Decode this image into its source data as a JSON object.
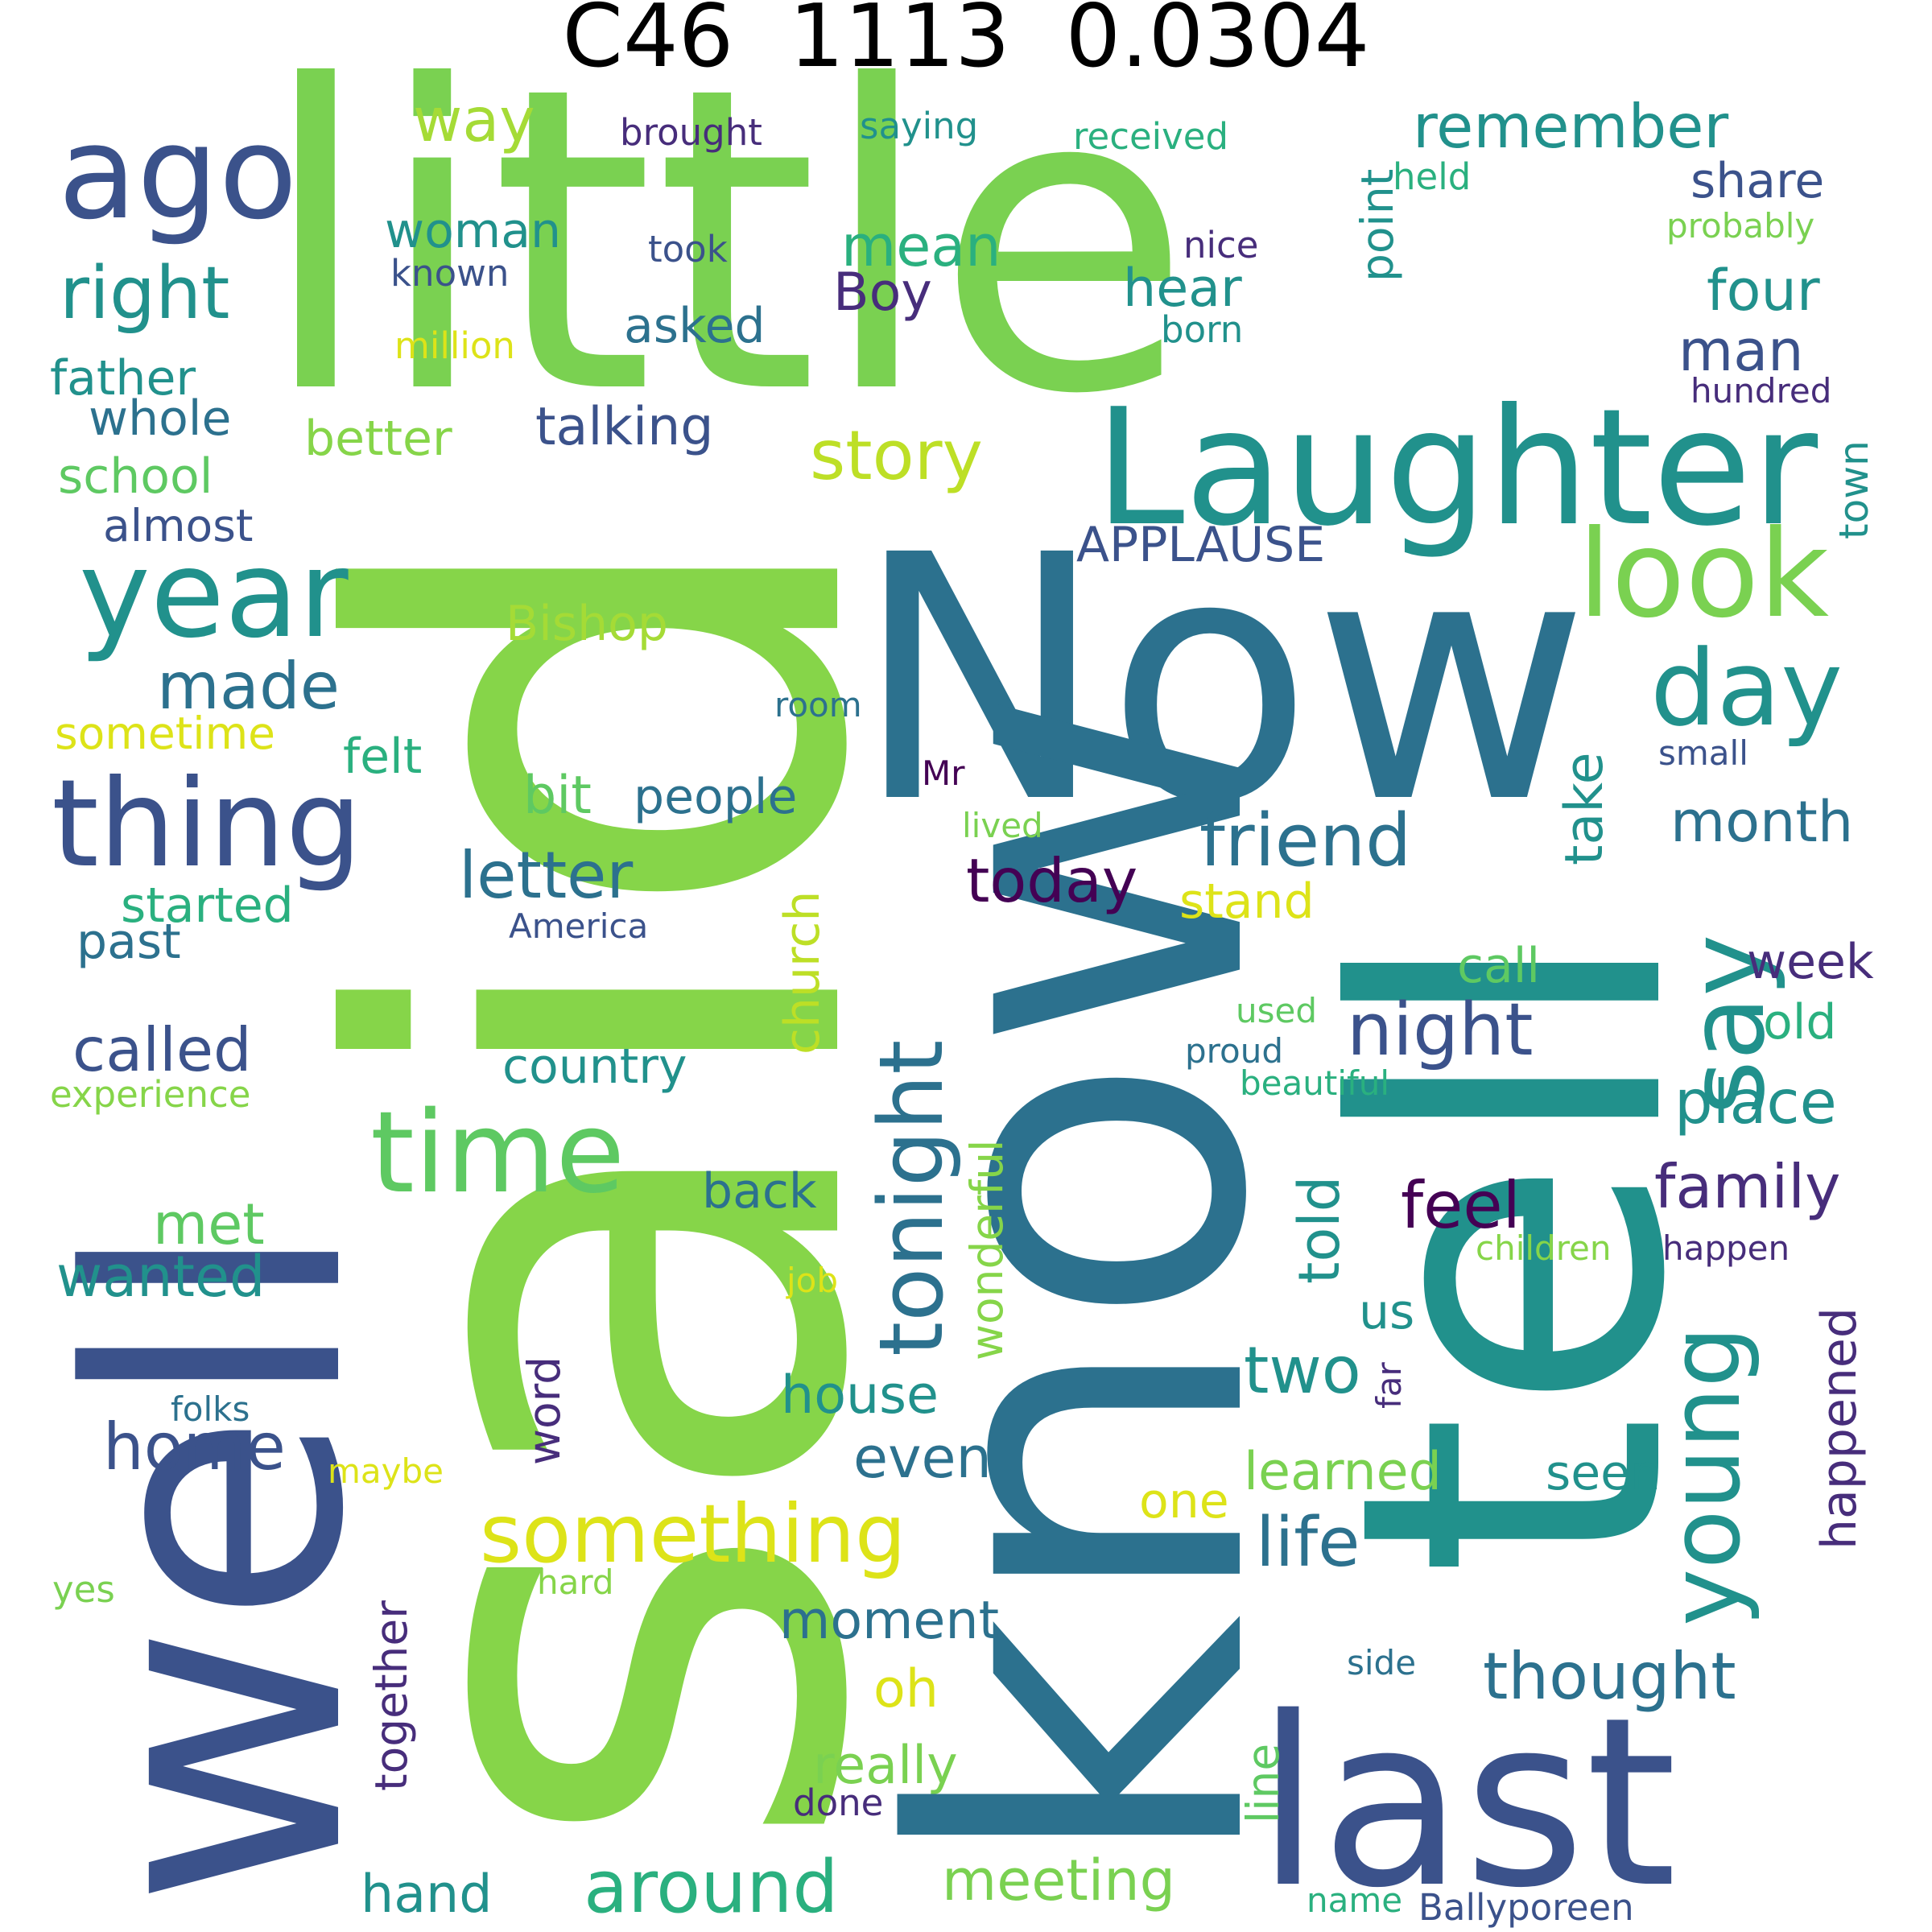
{
  "title": "C46  1113  0.0304",
  "palette": {
    "green": "#7ad151",
    "lightgreen": "#86d549",
    "teal": "#21918c",
    "blue": "#2c718e",
    "darkblue": "#3b528b",
    "indigo": "#472d7b",
    "purple": "#440154",
    "yellow": "#dde318",
    "seagreen": "#2ab07f",
    "lime": "#a5db36"
  },
  "words": [
    {
      "text": "little",
      "color": "#7ad151"
    },
    {
      "text": "said",
      "color": "#86d549"
    },
    {
      "text": "Now",
      "color": "#2c718e"
    },
    {
      "text": "know",
      "color": "#2c718e"
    },
    {
      "text": "tell",
      "color": "#21918c"
    },
    {
      "text": "well",
      "color": "#3b528b"
    },
    {
      "text": "last",
      "color": "#3b528b"
    },
    {
      "text": "Laughter",
      "color": "#21918c"
    },
    {
      "text": "ago",
      "color": "#3b528b"
    },
    {
      "text": "year",
      "color": "#21918c"
    },
    {
      "text": "thing",
      "color": "#3b528b"
    },
    {
      "text": "time",
      "color": "#5ec962"
    },
    {
      "text": "look",
      "color": "#7ad151"
    },
    {
      "text": "day",
      "color": "#21918c"
    },
    {
      "text": "say",
      "color": "#21918c"
    },
    {
      "text": "young",
      "color": "#21918c"
    },
    {
      "text": "tonight",
      "color": "#2c718e"
    },
    {
      "text": "right",
      "color": "#21918c"
    },
    {
      "text": "something",
      "color": "#dde318"
    },
    {
      "text": "story",
      "color": "#bddf26"
    },
    {
      "text": "remember",
      "color": "#21918c"
    },
    {
      "text": "made",
      "color": "#2c718e"
    },
    {
      "text": "friend",
      "color": "#2c718e"
    },
    {
      "text": "night",
      "color": "#3b528b"
    },
    {
      "text": "around",
      "color": "#2ab07f"
    },
    {
      "text": "letter",
      "color": "#2c718e"
    },
    {
      "text": "thought",
      "color": "#2c718e"
    },
    {
      "text": "called",
      "color": "#3b528b"
    },
    {
      "text": "today",
      "color": "#440154"
    },
    {
      "text": "month",
      "color": "#2c718e"
    },
    {
      "text": "place",
      "color": "#21918c"
    },
    {
      "text": "family",
      "color": "#472d7b"
    },
    {
      "text": "feel",
      "color": "#440154"
    },
    {
      "text": "life",
      "color": "#2c718e"
    },
    {
      "text": "wanted",
      "color": "#21918c"
    },
    {
      "text": "home",
      "color": "#3b528b"
    },
    {
      "text": "two",
      "color": "#21918c"
    },
    {
      "text": "even",
      "color": "#2c718e"
    },
    {
      "text": "meeting",
      "color": "#7ad151"
    },
    {
      "text": "moment",
      "color": "#2c718e"
    },
    {
      "text": "really",
      "color": "#7ad151"
    },
    {
      "text": "hand",
      "color": "#21918c"
    },
    {
      "text": "way",
      "color": "#a5db36"
    },
    {
      "text": "woman",
      "color": "#21918c"
    },
    {
      "text": "mean",
      "color": "#2ab07f"
    },
    {
      "text": "Boy",
      "color": "#472d7b"
    },
    {
      "text": "asked",
      "color": "#2c718e"
    },
    {
      "text": "hear",
      "color": "#21918c"
    },
    {
      "text": "share",
      "color": "#3b528b"
    },
    {
      "text": "four",
      "color": "#21918c"
    },
    {
      "text": "man",
      "color": "#3b528b"
    },
    {
      "text": "father",
      "color": "#21918c"
    },
    {
      "text": "whole",
      "color": "#2c718e"
    },
    {
      "text": "better",
      "color": "#86d549"
    },
    {
      "text": "talking",
      "color": "#3b528b"
    },
    {
      "text": "school",
      "color": "#5ec962"
    },
    {
      "text": "almost",
      "color": "#3b528b"
    },
    {
      "text": "APPLAUSE",
      "color": "#3b528b"
    },
    {
      "text": "Bishop",
      "color": "#a5db36"
    },
    {
      "text": "sometime",
      "color": "#dde318"
    },
    {
      "text": "felt",
      "color": "#2ab07f"
    },
    {
      "text": "bit",
      "color": "#5ec962"
    },
    {
      "text": "people",
      "color": "#2c718e"
    },
    {
      "text": "started",
      "color": "#2ab07f"
    },
    {
      "text": "past",
      "color": "#2c718e"
    },
    {
      "text": "church",
      "color": "#bddf26"
    },
    {
      "text": "country",
      "color": "#21918c"
    },
    {
      "text": "experience",
      "color": "#86d549"
    },
    {
      "text": "met",
      "color": "#5ec962"
    },
    {
      "text": "back",
      "color": "#2c718e"
    },
    {
      "text": "wonderful",
      "color": "#86d549"
    },
    {
      "text": "told",
      "color": "#21918c"
    },
    {
      "text": "take",
      "color": "#21918c"
    },
    {
      "text": "stand",
      "color": "#dde318"
    },
    {
      "text": "call",
      "color": "#5ec962"
    },
    {
      "text": "week",
      "color": "#472d7b"
    },
    {
      "text": "old",
      "color": "#2ab07f"
    },
    {
      "text": "point",
      "color": "#21918c"
    },
    {
      "text": "town",
      "color": "#21918c"
    },
    {
      "text": "house",
      "color": "#21918c"
    },
    {
      "text": "word",
      "color": "#472d7b"
    },
    {
      "text": "us",
      "color": "#21918c"
    },
    {
      "text": "learned",
      "color": "#7ad151"
    },
    {
      "text": "seen",
      "color": "#21918c"
    },
    {
      "text": "one",
      "color": "#dde318"
    },
    {
      "text": "happened",
      "color": "#472d7b"
    },
    {
      "text": "together",
      "color": "#472d7b"
    },
    {
      "text": "oh",
      "color": "#dde318"
    },
    {
      "text": "line",
      "color": "#5ec962"
    },
    {
      "text": "brought",
      "color": "#472d7b"
    },
    {
      "text": "saying",
      "color": "#21918c"
    },
    {
      "text": "received",
      "color": "#2ab07f"
    },
    {
      "text": "held",
      "color": "#2ab07f"
    },
    {
      "text": "probably",
      "color": "#7ad151"
    },
    {
      "text": "took",
      "color": "#3b528b"
    },
    {
      "text": "nice",
      "color": "#472d7b"
    },
    {
      "text": "known",
      "color": "#3b528b"
    },
    {
      "text": "million",
      "color": "#dde318"
    },
    {
      "text": "born",
      "color": "#21918c"
    },
    {
      "text": "hundred",
      "color": "#472d7b"
    },
    {
      "text": "room",
      "color": "#2c718e"
    },
    {
      "text": "Mr",
      "color": "#440154"
    },
    {
      "text": "small",
      "color": "#3b528b"
    },
    {
      "text": "lived",
      "color": "#7ad151"
    },
    {
      "text": "America",
      "color": "#3b528b"
    },
    {
      "text": "used",
      "color": "#5ec962"
    },
    {
      "text": "proud",
      "color": "#2c718e"
    },
    {
      "text": "beautiful",
      "color": "#2ab07f"
    },
    {
      "text": "children",
      "color": "#86d549"
    },
    {
      "text": "happen",
      "color": "#472d7b"
    },
    {
      "text": "job",
      "color": "#dde318"
    },
    {
      "text": "far",
      "color": "#472d7b"
    },
    {
      "text": "folks",
      "color": "#2c718e"
    },
    {
      "text": "maybe",
      "color": "#dde318"
    },
    {
      "text": "yes",
      "color": "#7ad151"
    },
    {
      "text": "hard",
      "color": "#86d549"
    },
    {
      "text": "side",
      "color": "#2c718e"
    },
    {
      "text": "done",
      "color": "#472d7b"
    },
    {
      "text": "name",
      "color": "#2ab07f"
    },
    {
      "text": "Ballyporeen",
      "color": "#3b528b"
    }
  ]
}
